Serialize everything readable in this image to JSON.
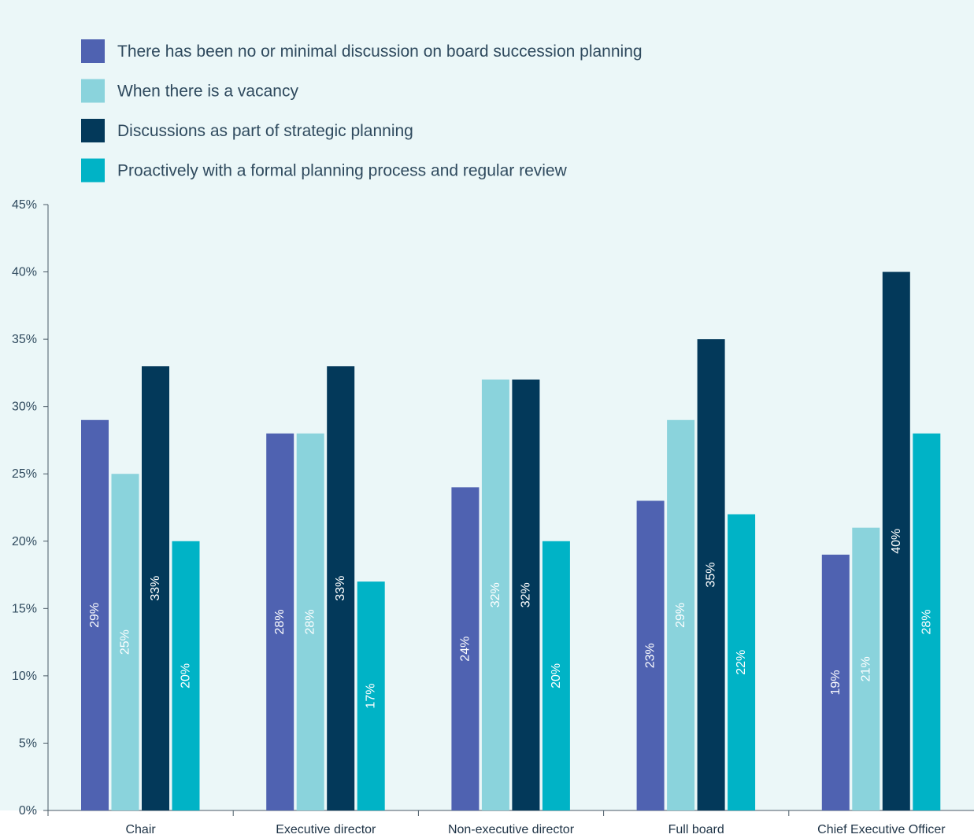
{
  "chart_data": {
    "type": "bar",
    "orientation": "vertical",
    "categories": [
      "Chair",
      "Executive director",
      "Non-executive director",
      "Full board",
      "Chief Executive Officer"
    ],
    "series": [
      {
        "name": "There has been no or minimal discussion on board succession planning",
        "color": "#4f62b1",
        "values": [
          29,
          28,
          24,
          23,
          19
        ]
      },
      {
        "name": "When there is a vacancy",
        "color": "#8ad3dc",
        "values": [
          25,
          28,
          32,
          29,
          21
        ]
      },
      {
        "name": "Discussions as part of strategic planning",
        "color": "#03395a",
        "values": [
          33,
          33,
          32,
          35,
          40
        ]
      },
      {
        "name": "Proactively with a formal planning process and regular review",
        "color": "#00b3c6",
        "values": [
          20,
          17,
          20,
          22,
          28
        ]
      }
    ],
    "value_suffix": "%",
    "ylim": [
      0,
      45
    ],
    "yticks": [
      0,
      5,
      10,
      15,
      20,
      25,
      30,
      35,
      40,
      45
    ],
    "ytick_labels": [
      "0%",
      "5%",
      "10%",
      "15%",
      "20%",
      "25%",
      "30%",
      "35%",
      "40%",
      "45%"
    ],
    "grid": false,
    "legend_position": "top-left",
    "background_color": "#ebf7f8",
    "title": "",
    "xlabel": "",
    "ylabel": ""
  }
}
